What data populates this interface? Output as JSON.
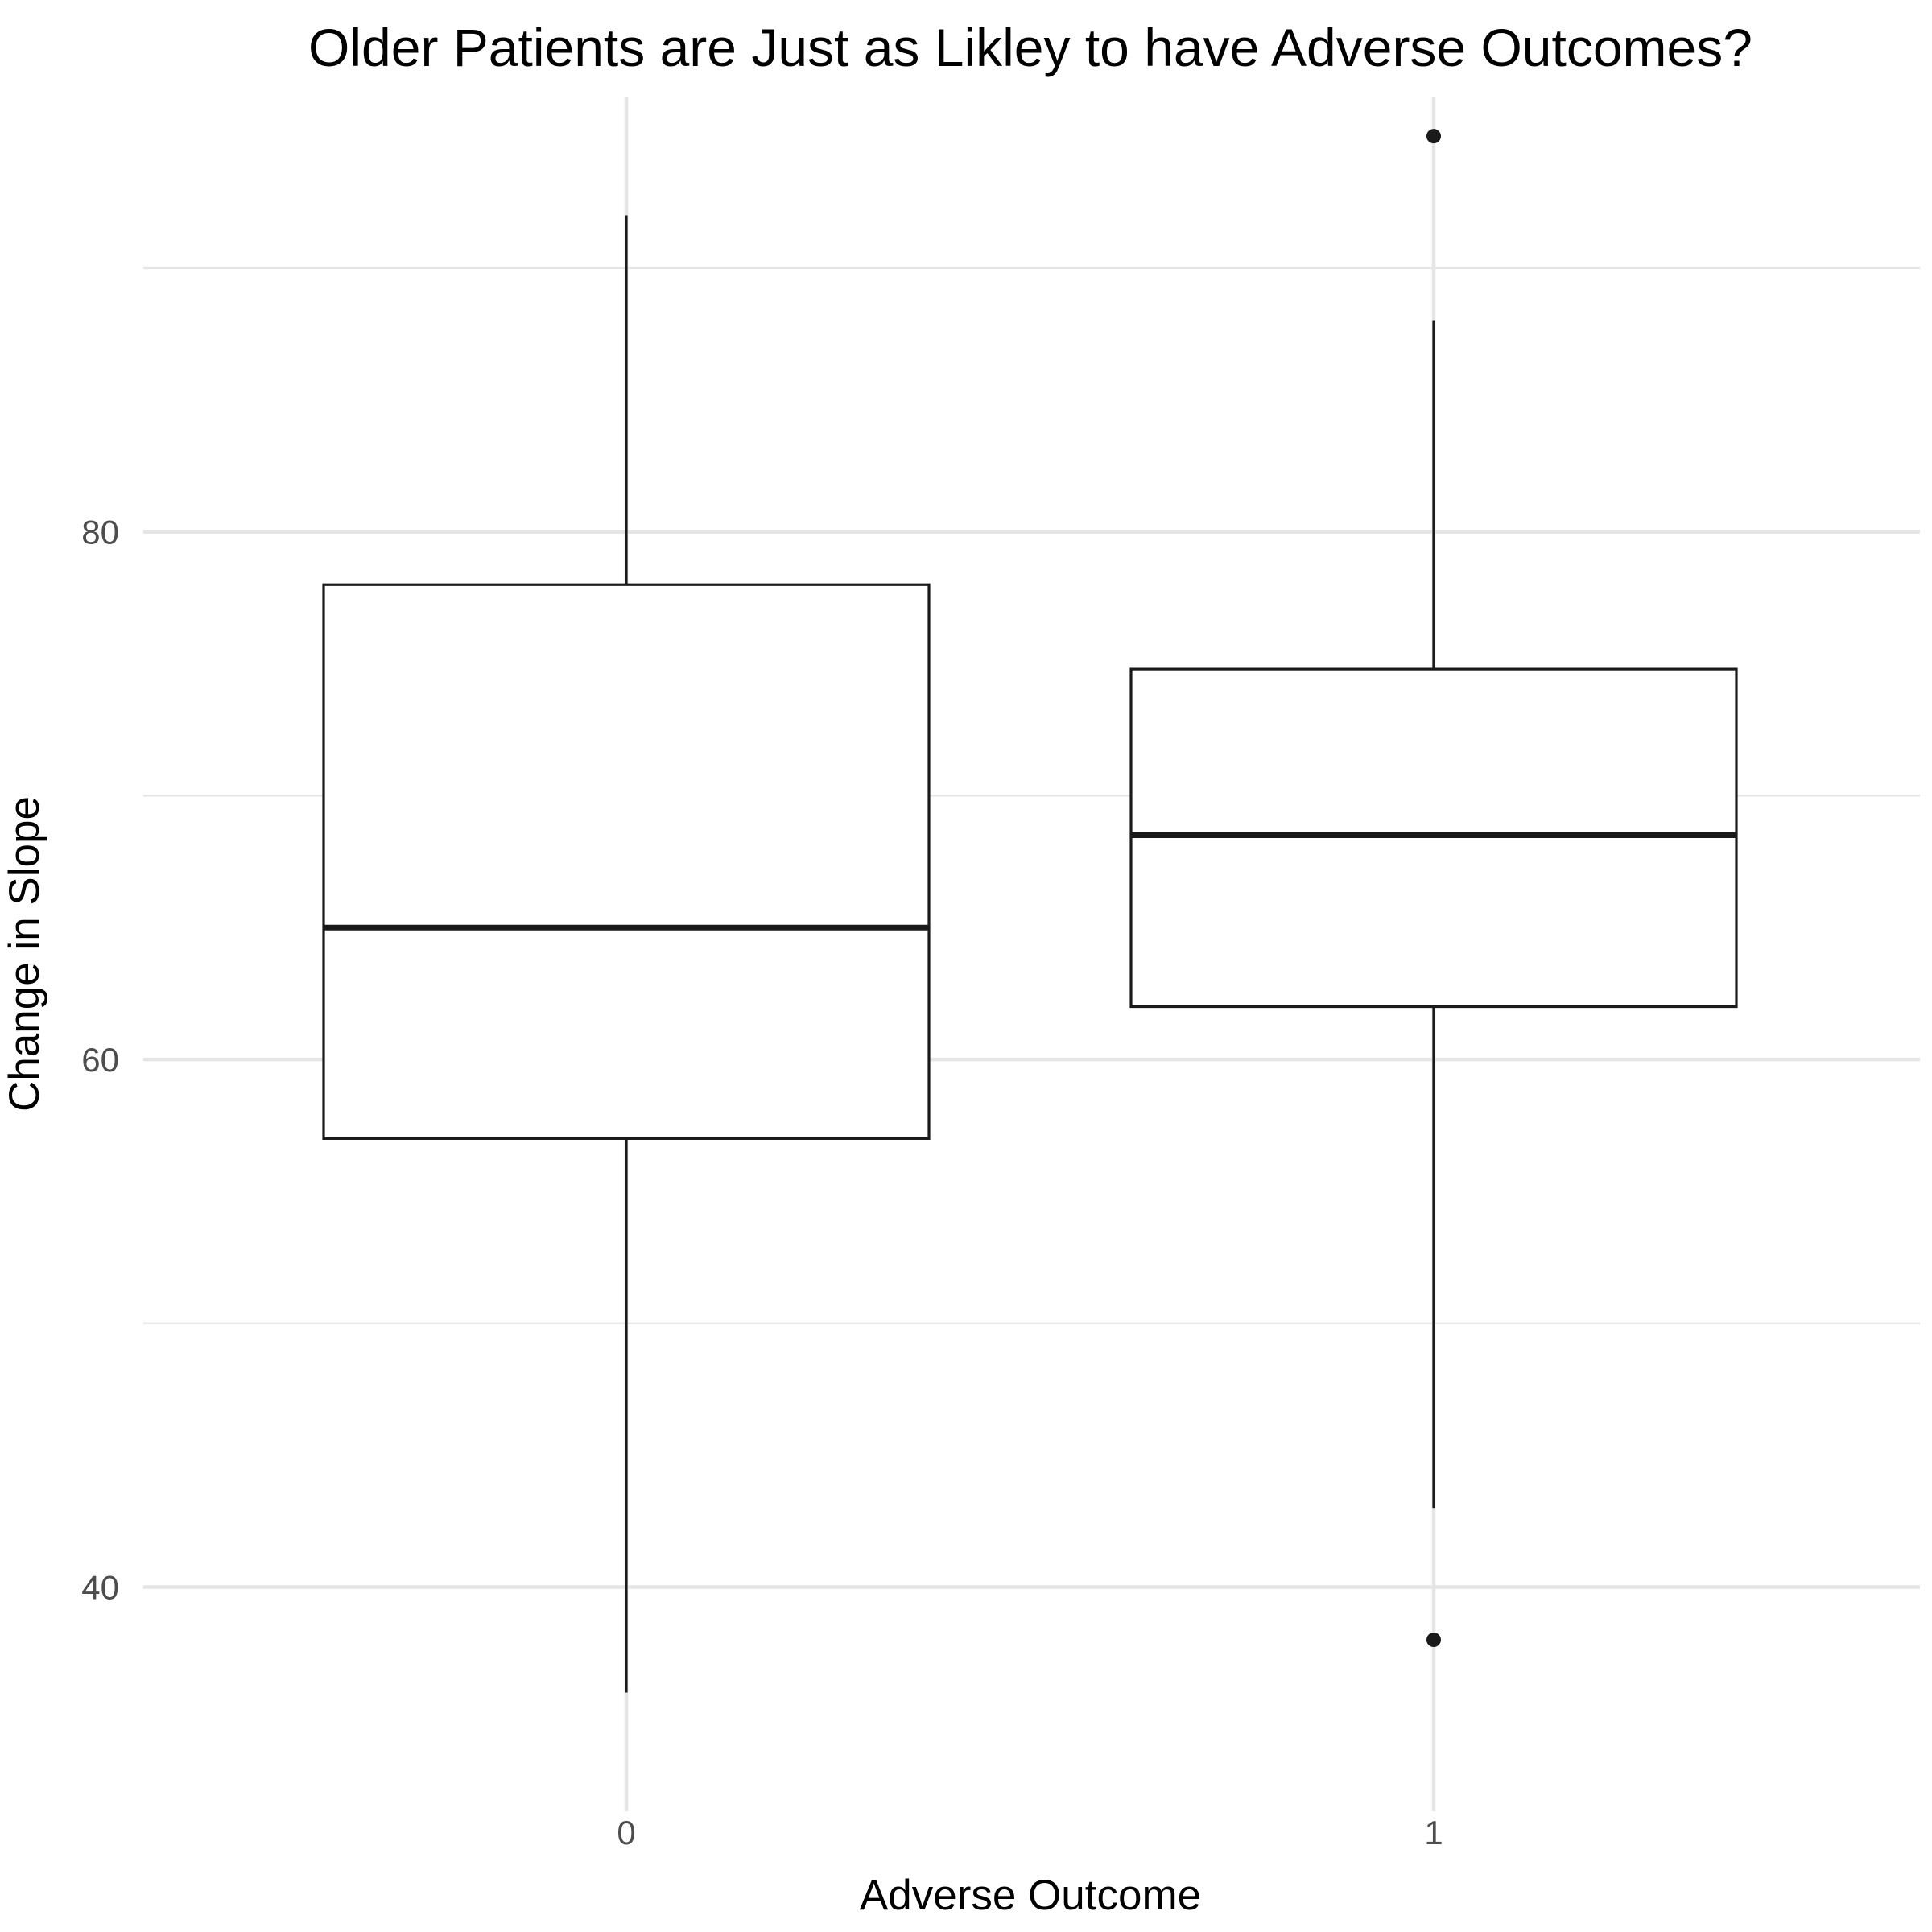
{
  "chart_data": {
    "type": "box",
    "title": "Older Patients are Just as Likley to have Adverse Outcomes?",
    "xlabel": "Adverse Outcome",
    "ylabel": "Change in Slope",
    "ylim": [
      31.5,
      96.5
    ],
    "y_ticks": [
      {
        "value": 40,
        "label": "40"
      },
      {
        "value": 60,
        "label": "60"
      },
      {
        "value": 80,
        "label": "80"
      }
    ],
    "y_minor_ticks": [
      50,
      70,
      90
    ],
    "grid": true,
    "categories": [
      "0",
      "1"
    ],
    "boxes": [
      {
        "category": "0",
        "whisker_low": 36.0,
        "q1": 57.0,
        "median": 65.0,
        "q3": 78.0,
        "whisker_high": 92.0,
        "outliers": []
      },
      {
        "category": "1",
        "whisker_low": 43.0,
        "q1": 62.0,
        "median": 68.5,
        "q3": 74.8,
        "whisker_high": 88.0,
        "outliers": [
          38.0,
          95.0
        ]
      }
    ]
  }
}
